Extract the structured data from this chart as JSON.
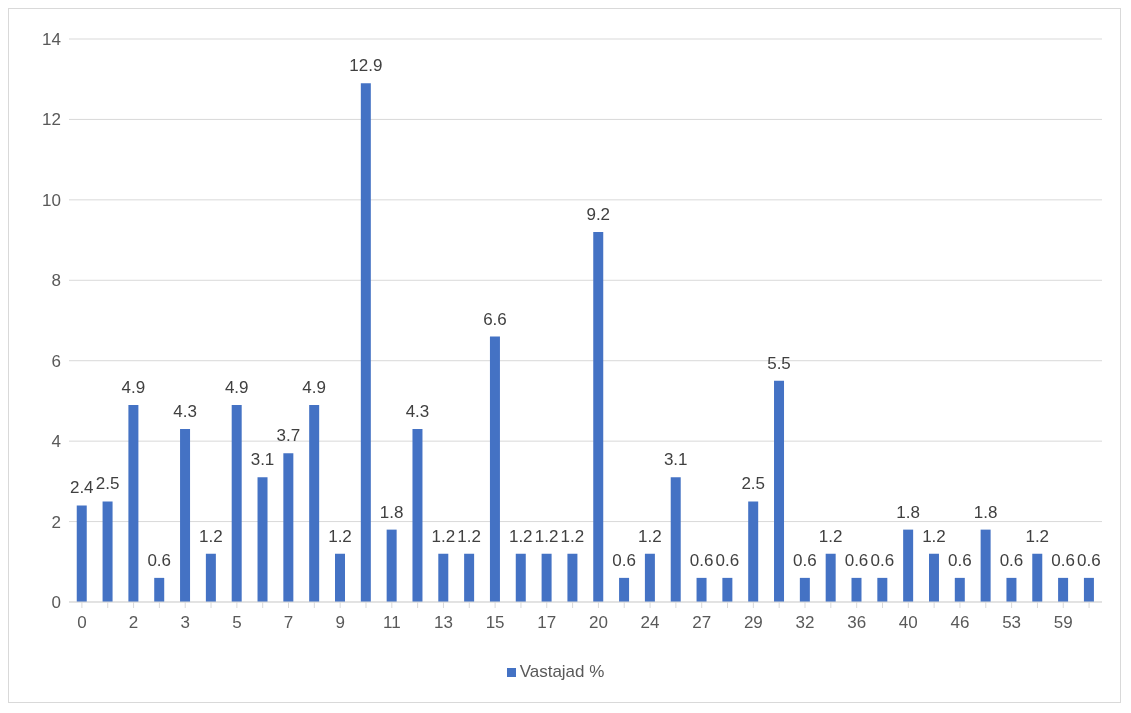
{
  "chart_data": {
    "type": "bar",
    "categories": [
      "0",
      null,
      "2",
      null,
      "3",
      null,
      "5",
      null,
      "7",
      null,
      "9",
      null,
      "11",
      null,
      "13",
      null,
      "15",
      null,
      "17",
      null,
      "20",
      null,
      "24",
      null,
      "27",
      null,
      "29",
      null,
      "32",
      null,
      "36",
      null,
      "40",
      null,
      "46",
      null,
      "53",
      null,
      "59",
      null
    ],
    "series": [
      {
        "name": "Vastajad %",
        "color": "#4472c4",
        "values": [
          2.4,
          2.5,
          4.9,
          0.6,
          4.3,
          1.2,
          4.9,
          3.1,
          3.7,
          4.9,
          1.2,
          12.9,
          1.8,
          4.3,
          1.2,
          1.2,
          6.6,
          1.2,
          1.2,
          1.2,
          9.2,
          0.6,
          1.2,
          3.1,
          0.6,
          0.6,
          2.5,
          5.5,
          0.6,
          1.2,
          0.6,
          0.6,
          1.8,
          1.2,
          0.6,
          1.8,
          0.6,
          1.2,
          0.6,
          0.6
        ]
      }
    ],
    "ylim": [
      0,
      14
    ],
    "yticks": [
      0,
      2,
      4,
      6,
      8,
      10,
      12,
      14
    ],
    "grid": "y",
    "legend": "bottom",
    "data_labels": true
  }
}
